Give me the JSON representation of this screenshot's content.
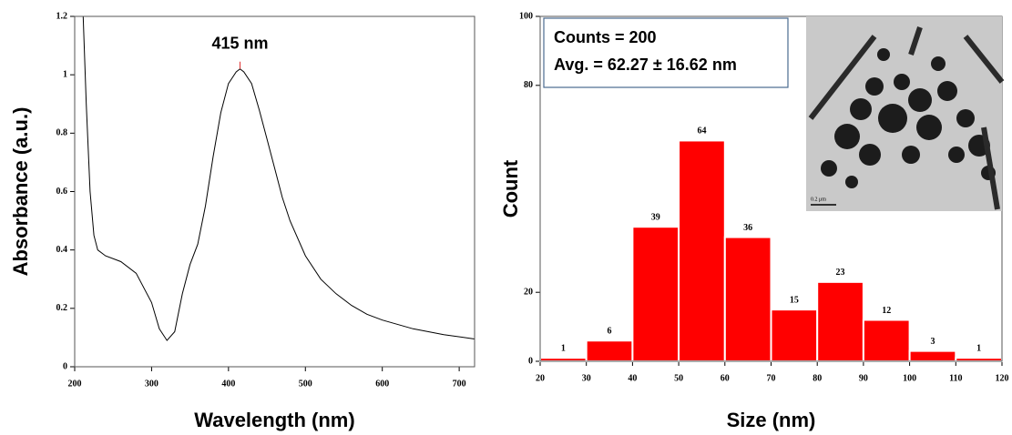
{
  "chart_data": [
    {
      "type": "line",
      "xlabel": "Wavelength (nm)",
      "ylabel": "Absorbance (a.u.)",
      "x": [
        211,
        215,
        220,
        225,
        230,
        240,
        260,
        280,
        300,
        310,
        320,
        330,
        340,
        350,
        360,
        370,
        380,
        390,
        400,
        410,
        415,
        420,
        430,
        440,
        450,
        460,
        470,
        480,
        500,
        520,
        540,
        560,
        580,
        600,
        640,
        680,
        720
      ],
      "values": [
        1.2,
        0.9,
        0.6,
        0.45,
        0.4,
        0.38,
        0.36,
        0.32,
        0.22,
        0.13,
        0.09,
        0.12,
        0.25,
        0.35,
        0.42,
        0.55,
        0.72,
        0.87,
        0.97,
        1.01,
        1.02,
        1.01,
        0.97,
        0.88,
        0.78,
        0.68,
        0.58,
        0.5,
        0.38,
        0.3,
        0.25,
        0.21,
        0.18,
        0.16,
        0.13,
        0.11,
        0.095
      ],
      "color": "#000000",
      "xlim": [
        200,
        720
      ],
      "xticks": [
        200,
        300,
        400,
        500,
        600,
        700
      ],
      "ylim": [
        0,
        1.2
      ],
      "yticks": [
        0,
        0.2,
        0.4,
        0.6,
        0.8,
        1,
        1.2
      ],
      "annotation": {
        "text": "415 nm",
        "x": 415,
        "y": 1.02,
        "color": "#e03030"
      }
    },
    {
      "type": "histogram",
      "xlabel": "Size (nm)",
      "ylabel": "Count",
      "bins": [
        20,
        30,
        40,
        50,
        60,
        70,
        80,
        90,
        100,
        110,
        120
      ],
      "values": [
        1,
        6,
        39,
        64,
        36,
        15,
        23,
        12,
        3,
        1
      ],
      "color": "#ff0000",
      "xlim": [
        20,
        120
      ],
      "xticks": [
        20,
        30,
        40,
        50,
        60,
        70,
        80,
        90,
        100,
        110,
        120
      ],
      "ylim": [
        0,
        100
      ],
      "yticks": [
        0,
        20,
        80,
        100
      ],
      "stats": [
        "Counts = 200",
        "Avg. = 62.27 ± 16.62 nm"
      ],
      "inset_scale": "0.2 μm"
    }
  ]
}
